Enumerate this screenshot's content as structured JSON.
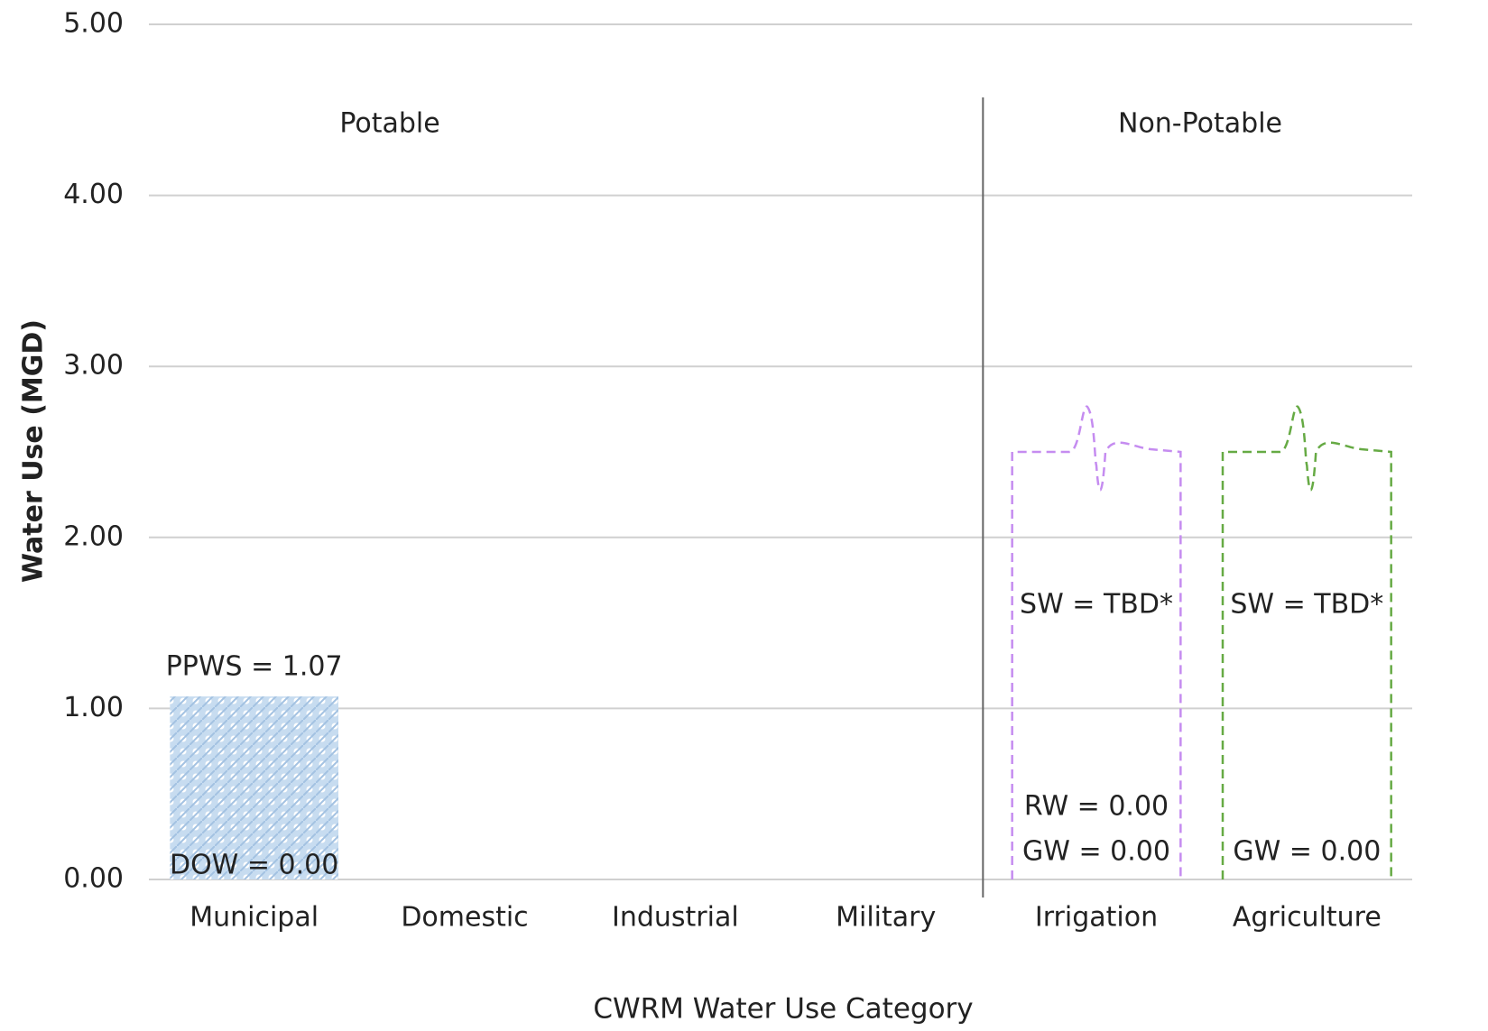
{
  "chart_data": {
    "type": "bar",
    "y_label": "Water Use (MGD)",
    "x_label": "CWRM Water Use Category",
    "categories": [
      "Municipal",
      "Domestic",
      "Industrial",
      "Military",
      "Irrigation",
      "Agriculture"
    ],
    "groups": [
      "Potable",
      "Non-Potable"
    ],
    "ylim": [
      0,
      5
    ],
    "yticks": [
      {
        "value": 0,
        "label": "0.00"
      },
      {
        "value": 1,
        "label": "1.00"
      },
      {
        "value": 2,
        "label": "2.00"
      },
      {
        "value": 3,
        "label": "3.00"
      },
      {
        "value": 4,
        "label": "4.00"
      },
      {
        "value": 5,
        "label": "5.00"
      }
    ],
    "grid": true,
    "series": [
      {
        "color": "#a9c9e8",
        "values": [
          1.07,
          null,
          null,
          null,
          null,
          null
        ],
        "value_labels": [
          "PPWS = 1.07",
          null,
          null,
          null,
          null,
          null
        ]
      },
      {
        "color": "#a9c9e8",
        "values": [
          0,
          null,
          null,
          null,
          null,
          null
        ],
        "value_labels": [
          "DOW = 0.00",
          null,
          null,
          null,
          null,
          null
        ]
      },
      {
        "color": "#c58cf0",
        "values": [
          null,
          null,
          null,
          null,
          0,
          null
        ],
        "value_labels": [
          null,
          null,
          null,
          null,
          "RW = 0.00",
          null
        ]
      },
      {
        "color": "#66aa44",
        "values": [
          null,
          null,
          null,
          null,
          0,
          0
        ],
        "value_labels": [
          null,
          null,
          null,
          null,
          "GW = 0.00",
          "GW = 0.00"
        ]
      },
      {
        "colors": [
          null,
          null,
          null,
          null,
          "#c58cf0",
          "#66aa44"
        ],
        "values": [
          null,
          null,
          null,
          null,
          2.5,
          2.5
        ],
        "value_labels": [
          null,
          null,
          null,
          null,
          "SW = TBD*",
          "SW = TBD*"
        ]
      }
    ]
  }
}
